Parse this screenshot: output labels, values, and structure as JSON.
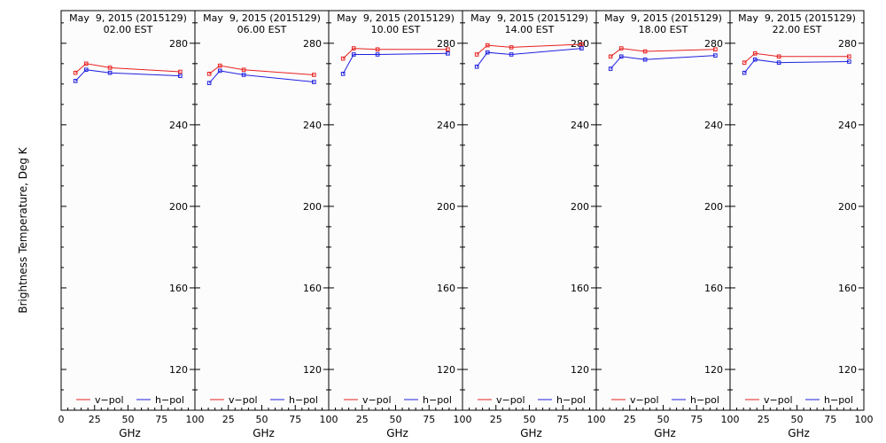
{
  "chart_data": {
    "type": "line",
    "ylabel": "Brightness Temperature, Deg K",
    "xlabel": "GHz",
    "ylim": [
      100,
      296
    ],
    "xlim": [
      0,
      100
    ],
    "yticks": [
      120,
      160,
      200,
      240,
      280
    ],
    "xtick_values": [
      0,
      25,
      50,
      75,
      100
    ],
    "xtick_labels_first": [
      "0",
      "25",
      "50",
      "75",
      "100"
    ],
    "xtick_labels_other": [
      "",
      "25",
      "50",
      "75",
      "100"
    ],
    "colors": {
      "v_pol": "#e82020",
      "h_pol": "#2020e0"
    },
    "legend": [
      "v−pol",
      "h−pol"
    ],
    "panels": [
      {
        "title_line1": "May  9, 2015 (2015129)",
        "title_line2": "02.00 EST",
        "series": [
          {
            "name": "v−pol",
            "x": [
              10.7,
              18.7,
              36.5,
              89.0
            ],
            "y": [
              265.5,
              270.0,
              268.0,
              266.0
            ]
          },
          {
            "name": "h−pol",
            "x": [
              10.7,
              18.7,
              36.5,
              89.0
            ],
            "y": [
              261.5,
              267.0,
              265.5,
              264.0
            ]
          }
        ]
      },
      {
        "title_line1": "May  9, 2015 (2015129)",
        "title_line2": "06.00 EST",
        "series": [
          {
            "name": "v−pol",
            "x": [
              10.7,
              18.7,
              36.5,
              89.0
            ],
            "y": [
              265.0,
              269.0,
              267.0,
              264.5
            ]
          },
          {
            "name": "h−pol",
            "x": [
              10.7,
              18.7,
              36.5,
              89.0
            ],
            "y": [
              260.5,
              266.5,
              264.5,
              261.0
            ]
          }
        ]
      },
      {
        "title_line1": "May  9, 2015 (2015129)",
        "title_line2": "10.00 EST",
        "series": [
          {
            "name": "v−pol",
            "x": [
              10.7,
              18.7,
              36.5,
              89.0
            ],
            "y": [
              272.5,
              277.5,
              277.0,
              277.0
            ]
          },
          {
            "name": "h−pol",
            "x": [
              10.7,
              18.7,
              36.5,
              89.0
            ],
            "y": [
              265.0,
              274.5,
              274.5,
              275.0
            ]
          }
        ]
      },
      {
        "title_line1": "May  9, 2015 (2015129)",
        "title_line2": "14.00 EST",
        "series": [
          {
            "name": "v−pol",
            "x": [
              10.7,
              18.7,
              36.5,
              89.0
            ],
            "y": [
              274.5,
              279.0,
              278.0,
              279.5
            ]
          },
          {
            "name": "h−pol",
            "x": [
              10.7,
              18.7,
              36.5,
              89.0
            ],
            "y": [
              268.5,
              275.5,
              274.5,
              277.5
            ]
          }
        ]
      },
      {
        "title_line1": "May  9, 2015 (2015129)",
        "title_line2": "18.00 EST",
        "series": [
          {
            "name": "v−pol",
            "x": [
              10.7,
              18.7,
              36.5,
              89.0
            ],
            "y": [
              273.5,
              277.5,
              276.0,
              277.0
            ]
          },
          {
            "name": "h−pol",
            "x": [
              10.7,
              18.7,
              36.5,
              89.0
            ],
            "y": [
              267.5,
              273.5,
              272.0,
              274.0
            ]
          }
        ]
      },
      {
        "title_line1": "May  9, 2015 (2015129)",
        "title_line2": "22.00 EST",
        "series": [
          {
            "name": "v−pol",
            "x": [
              10.7,
              18.7,
              36.5,
              89.0
            ],
            "y": [
              270.5,
              275.0,
              273.5,
              273.5
            ]
          },
          {
            "name": "h−pol",
            "x": [
              10.7,
              18.7,
              36.5,
              89.0
            ],
            "y": [
              265.5,
              272.0,
              270.5,
              271.0
            ]
          }
        ]
      }
    ]
  }
}
